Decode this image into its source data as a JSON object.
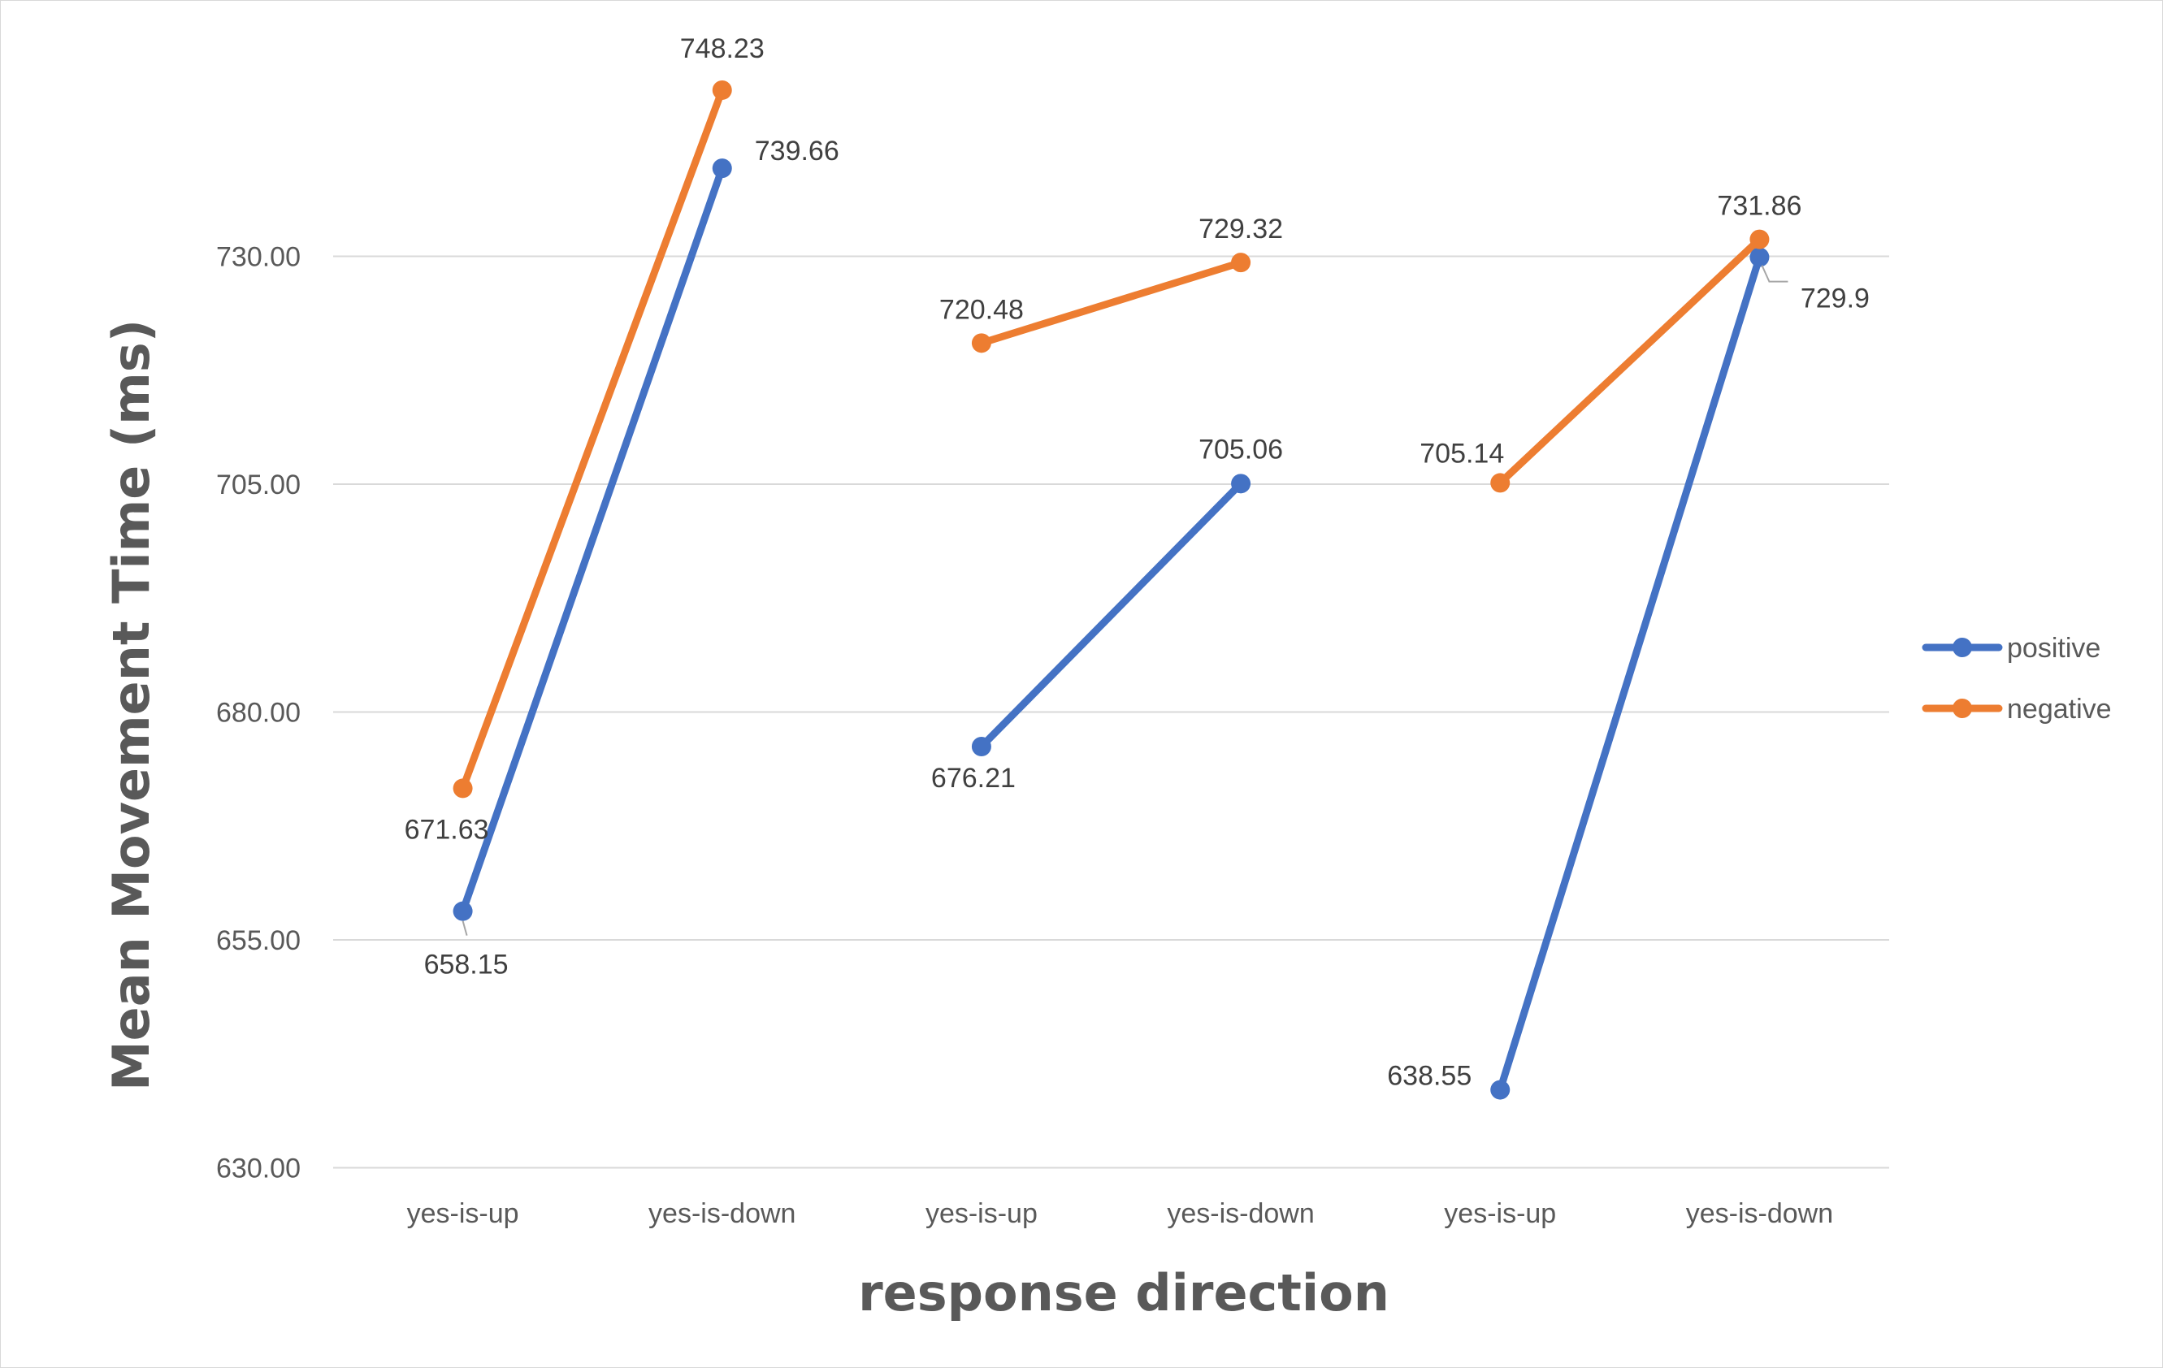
{
  "chart_data": {
    "type": "line",
    "xlabel": "response direction",
    "ylabel": "Mean Movement Time (ms)",
    "ylim": [
      630,
      740
    ],
    "yticks": [
      "630.00",
      "655.00",
      "680.00",
      "705.00",
      "730.00"
    ],
    "ytick_values": [
      630,
      655,
      680,
      705,
      730
    ],
    "grid": true,
    "legend_position": "right",
    "categories": [
      "yes-is-up",
      "yes-is-down",
      "yes-is-up",
      "yes-is-down",
      "yes-is-up",
      "yes-is-down"
    ],
    "groups": [
      [
        0,
        1
      ],
      [
        2,
        3
      ],
      [
        4,
        5
      ]
    ],
    "series": [
      {
        "name": "positive",
        "color": "#4472C4",
        "values": [
          658.15,
          739.66,
          676.21,
          705.06,
          638.55,
          729.9
        ],
        "labels": [
          "658.15",
          "739.66",
          "676.21",
          "705.06",
          "638.55",
          "729.9"
        ]
      },
      {
        "name": "negative",
        "color": "#ED7D31",
        "values": [
          671.63,
          748.23,
          720.48,
          729.32,
          705.14,
          731.86
        ],
        "labels": [
          "671.63",
          "748.23",
          "720.48",
          "729.32",
          "705.14",
          "731.86"
        ]
      }
    ]
  }
}
